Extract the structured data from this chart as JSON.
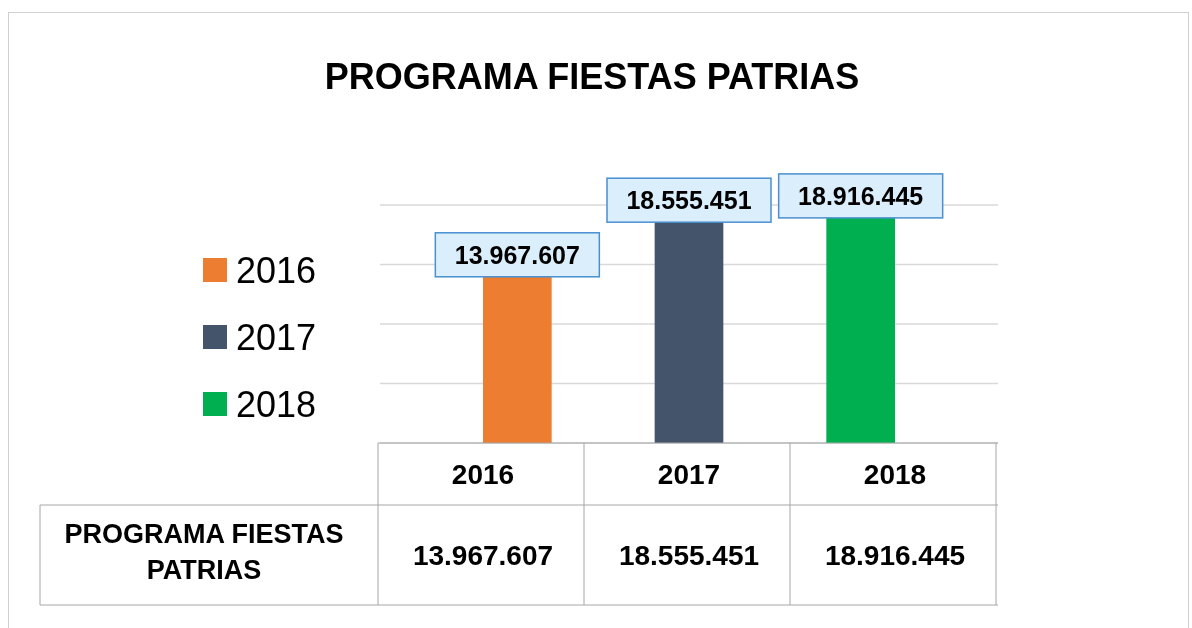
{
  "chart_data": {
    "type": "bar",
    "title": "PROGRAMA FIESTAS PATRIAS",
    "categories": [
      "2016",
      "2017",
      "2018"
    ],
    "series": [
      {
        "name": "PROGRAMA FIESTAS PATRIAS",
        "colors": [
          "#ed7d31",
          "#44546a",
          "#00b050"
        ],
        "values": [
          13967607,
          18555451,
          18916445
        ],
        "value_labels": [
          "13.967.607",
          "18.555.451",
          "18.916.445"
        ]
      }
    ],
    "ylim": [
      0,
      20000000
    ],
    "yticks": [
      {
        "value": 0,
        "label": null
      },
      {
        "value": 5000000,
        "label": null
      },
      {
        "value": 10000000,
        "label": null
      },
      {
        "value": 15000000,
        "label": null
      },
      {
        "value": 20000000,
        "label": null
      }
    ],
    "tick_labels": "x",
    "grid": "y",
    "legend": "left"
  }
}
